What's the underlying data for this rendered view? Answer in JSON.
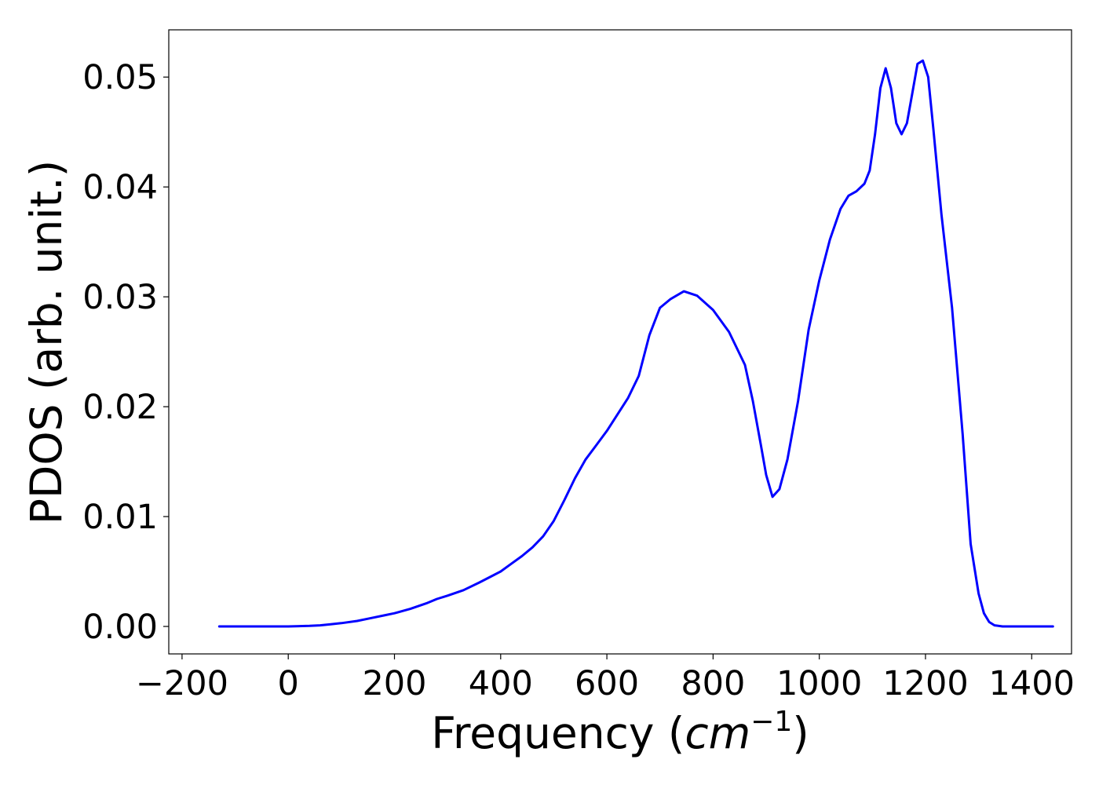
{
  "chart_data": {
    "type": "line",
    "xlabel_main": "Frequency (",
    "xlabel_unit": "cm",
    "xlabel_exp": "−1",
    "xlabel_close": ")",
    "ylabel": "PDOS (arb. unit.)",
    "xlim": [
      -225,
      1475
    ],
    "ylim": [
      -0.0025,
      0.0543
    ],
    "xticks": [
      -200,
      0,
      200,
      400,
      600,
      800,
      1000,
      1200,
      1400
    ],
    "xtick_labels": [
      "−200",
      "0",
      "200",
      "400",
      "600",
      "800",
      "1000",
      "1200",
      "1400"
    ],
    "yticks": [
      0.0,
      0.01,
      0.02,
      0.03,
      0.04,
      0.05
    ],
    "ytick_labels": [
      "0.00",
      "0.01",
      "0.02",
      "0.03",
      "0.04",
      "0.05"
    ],
    "grid": false,
    "series": [
      {
        "color": "#0000ff",
        "x": [
          -130,
          -100,
          -50,
          0,
          40,
          60,
          80,
          100,
          130,
          150,
          180,
          200,
          230,
          260,
          280,
          300,
          330,
          360,
          380,
          400,
          420,
          440,
          460,
          480,
          500,
          520,
          540,
          560,
          580,
          600,
          620,
          640,
          660,
          680,
          700,
          720,
          745,
          770,
          800,
          830,
          860,
          875,
          890,
          900,
          912,
          925,
          940,
          960,
          980,
          1000,
          1020,
          1040,
          1055,
          1070,
          1085,
          1095,
          1105,
          1115,
          1125,
          1135,
          1145,
          1155,
          1165,
          1175,
          1185,
          1195,
          1205,
          1215,
          1230,
          1250,
          1270,
          1285,
          1300,
          1310,
          1320,
          1330,
          1345,
          1370,
          1440
        ],
        "y": [
          0.0,
          0.0,
          0.0,
          0.0,
          5e-05,
          0.0001,
          0.0002,
          0.0003,
          0.0005,
          0.0007,
          0.001,
          0.0012,
          0.0016,
          0.0021,
          0.0025,
          0.0028,
          0.0033,
          0.004,
          0.0045,
          0.005,
          0.0057,
          0.0064,
          0.0072,
          0.0082,
          0.0096,
          0.0115,
          0.0135,
          0.0152,
          0.0165,
          0.0178,
          0.0193,
          0.0208,
          0.0228,
          0.0265,
          0.029,
          0.0298,
          0.0305,
          0.0301,
          0.0288,
          0.0268,
          0.0238,
          0.0205,
          0.0165,
          0.0138,
          0.0118,
          0.0125,
          0.0152,
          0.0205,
          0.027,
          0.0315,
          0.0352,
          0.038,
          0.0392,
          0.0396,
          0.0403,
          0.0415,
          0.0448,
          0.049,
          0.0508,
          0.049,
          0.0458,
          0.0448,
          0.0458,
          0.0485,
          0.0512,
          0.0515,
          0.05,
          0.0452,
          0.0375,
          0.029,
          0.0175,
          0.0075,
          0.003,
          0.0012,
          0.0004,
          0.0001,
          0.0,
          0.0,
          0.0
        ]
      }
    ]
  }
}
